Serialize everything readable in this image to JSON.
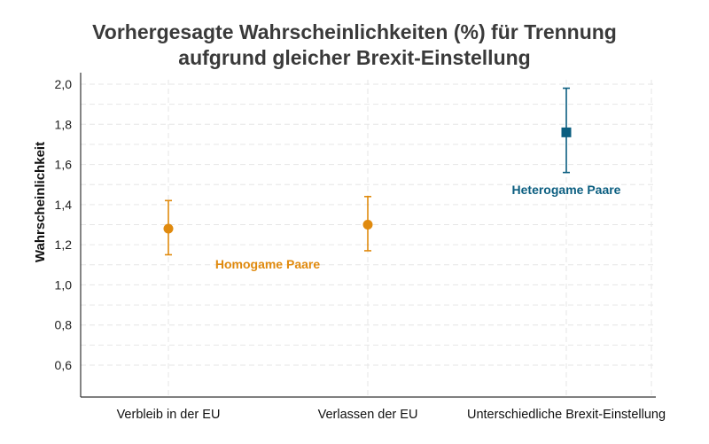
{
  "colors": {
    "homogame": "#e08a0e",
    "heterogame": "#0b5e80",
    "grid": "#e6e6e6",
    "axis": "#333333"
  },
  "chart_data": {
    "type": "scatter",
    "title_lines": [
      "Vorhergesagte Wahrscheinlichkeiten (%) für Trennung",
      "aufgrund gleicher Brexit-Einstellung"
    ],
    "xlabel": "",
    "ylabel": "Wahrscheinlichkeit",
    "ylim": [
      0.45,
      2.02
    ],
    "yticks": [
      0.6,
      0.8,
      1.0,
      1.2,
      1.4,
      1.6,
      1.8,
      2.0
    ],
    "ytick_labels": [
      "0,6",
      "0,8",
      "1,0",
      "1,2",
      "1,4",
      "1,6",
      "1,8",
      "2,0"
    ],
    "categories": [
      "Verbleib in der EU",
      "Verlassen der EU",
      "Unterschiedliche Brexit-Einstellung"
    ],
    "grid": true,
    "series": [
      {
        "name": "Homogame Paare",
        "color": "#e08a0e",
        "marker": "circle",
        "points": [
          {
            "category": "Verbleib in der EU",
            "y": 1.28,
            "low": 1.15,
            "high": 1.42
          },
          {
            "category": "Verlassen der EU",
            "y": 1.3,
            "low": 1.17,
            "high": 1.44
          }
        ]
      },
      {
        "name": "Heterogame Paare",
        "color": "#0b5e80",
        "marker": "square",
        "points": [
          {
            "category": "Unterschiedliche Brexit-Einstellung",
            "y": 1.76,
            "low": 1.56,
            "high": 1.98
          }
        ]
      }
    ]
  }
}
